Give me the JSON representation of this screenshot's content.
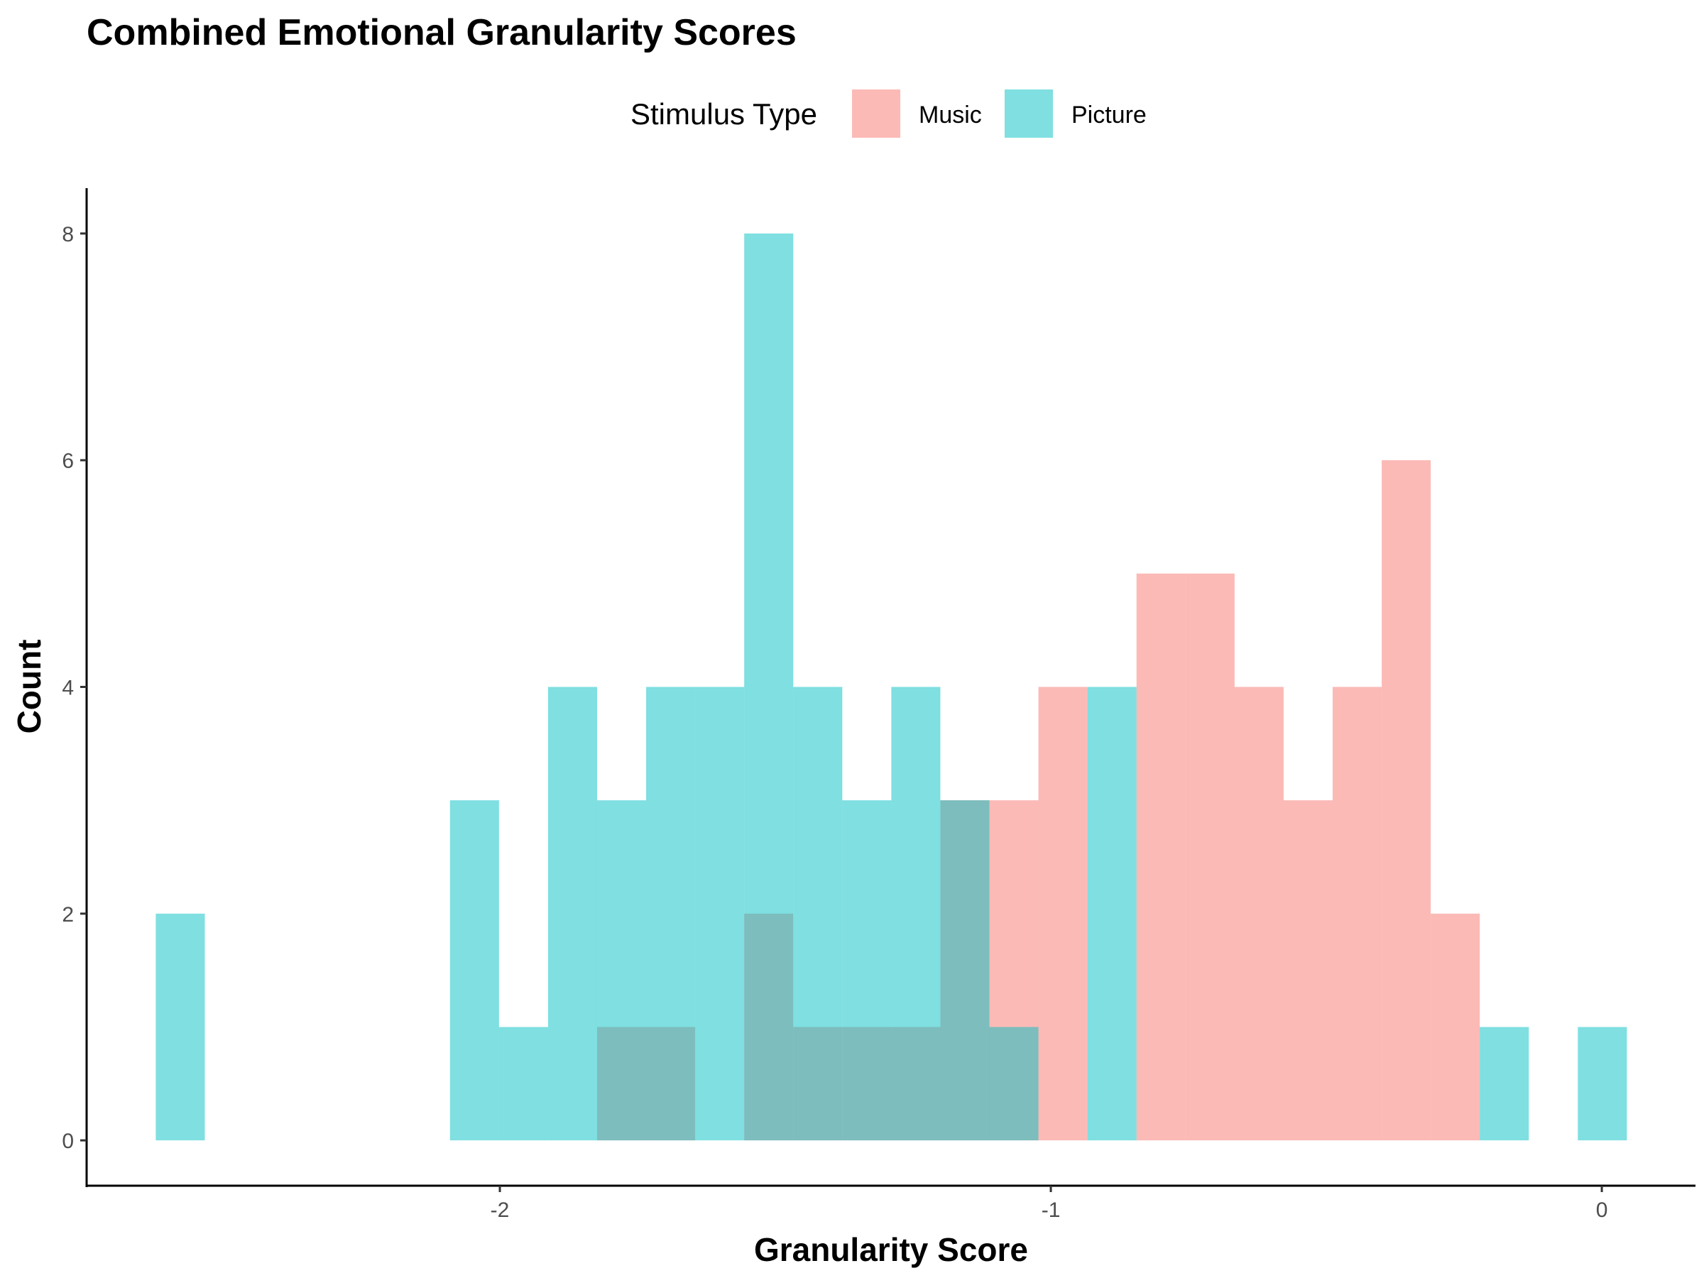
{
  "chart_data": {
    "type": "histogram",
    "title": "Combined Emotional Granularity Scores",
    "xlabel": "Granularity Score",
    "ylabel": "Count",
    "legend": {
      "title": "Stimulus Type",
      "placement": "top",
      "entries": [
        "Music",
        "Picture"
      ]
    },
    "grid": false,
    "xlim": [
      -2.75,
      0.17
    ],
    "ylim": [
      -0.4,
      8.4
    ],
    "x_ticks": [
      -2,
      -1,
      0
    ],
    "x_tick_labels": [
      "-2",
      "-1",
      "0"
    ],
    "y_ticks": [
      0,
      2,
      4,
      6,
      8
    ],
    "y_tick_labels": [
      "0",
      "2",
      "4",
      "6",
      "8"
    ],
    "bin_width": 0.089,
    "bin_centers": [
      -2.58,
      -2.491,
      -2.402,
      -2.313,
      -2.224,
      -2.135,
      -2.046,
      -1.957,
      -1.868,
      -1.779,
      -1.69,
      -1.601,
      -1.512,
      -1.423,
      -1.334,
      -1.245,
      -1.156,
      -1.067,
      -0.978,
      -0.889,
      -0.8,
      -0.711,
      -0.622,
      -0.533,
      -0.444,
      -0.355,
      -0.266,
      -0.177,
      -0.088,
      0.001
    ],
    "series": [
      {
        "name": "Music",
        "color": "#f8766d",
        "values": [
          0,
          0,
          0,
          0,
          0,
          0,
          0,
          0,
          0,
          1,
          1,
          0,
          2,
          1,
          1,
          1,
          3,
          3,
          4,
          0,
          5,
          5,
          4,
          3,
          4,
          6,
          2,
          0,
          0,
          0
        ]
      },
      {
        "name": "Picture",
        "color": "#00bfc4",
        "values": [
          2,
          0,
          0,
          0,
          0,
          0,
          3,
          1,
          4,
          3,
          4,
          4,
          8,
          4,
          3,
          4,
          3,
          1,
          0,
          4,
          0,
          0,
          0,
          0,
          0,
          0,
          0,
          1,
          0,
          1
        ]
      }
    ],
    "fill_opacity": 0.5
  }
}
